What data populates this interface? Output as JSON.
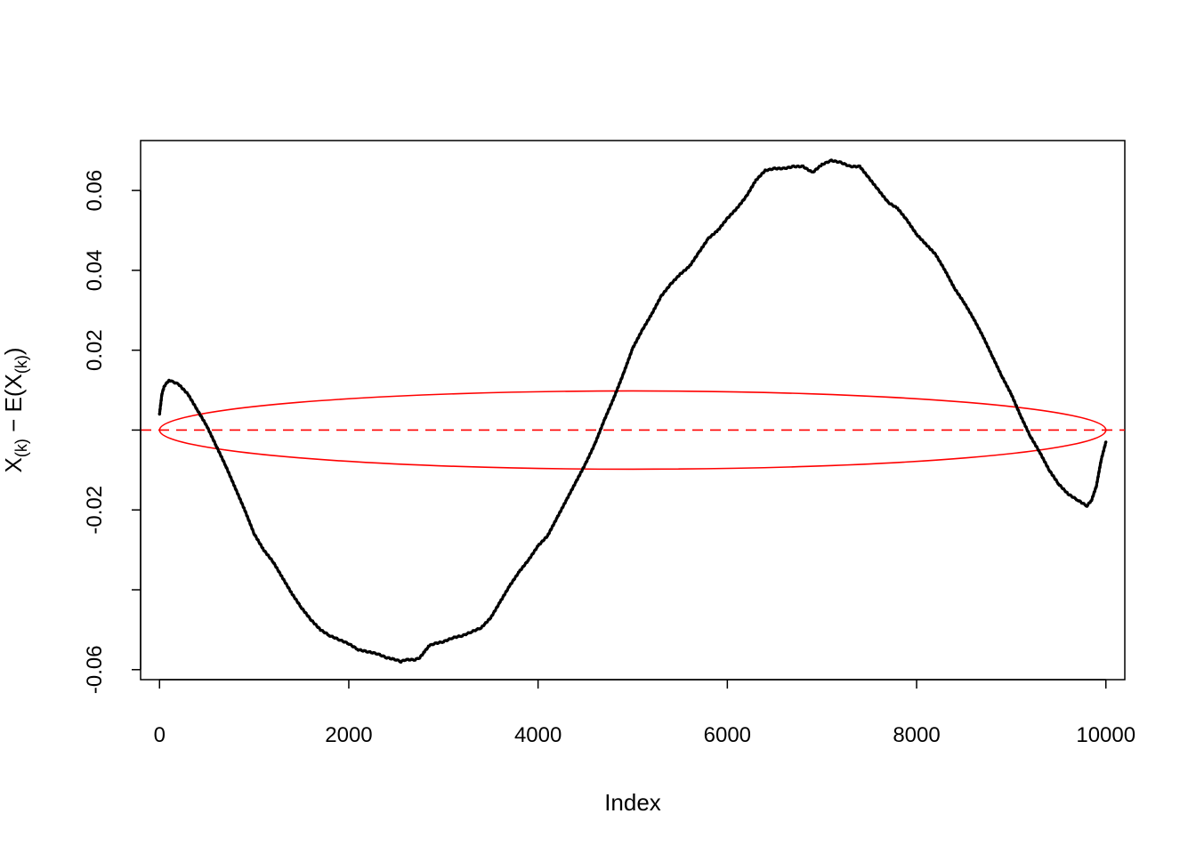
{
  "chart_data": {
    "type": "scatter",
    "title": "",
    "xlabel": "Index",
    "ylabel": {
      "x1": "X",
      "s1": "(k)",
      "m": " − E(X",
      "s2": "(k)",
      "e": ")"
    },
    "xlim": [
      -200,
      10200
    ],
    "ylim": [
      -0.0625,
      0.0725
    ],
    "xticks": [
      0,
      2000,
      4000,
      6000,
      8000,
      10000
    ],
    "xtick_labels": [
      "0",
      "2000",
      "4000",
      "6000",
      "8000",
      "10000"
    ],
    "yticks": [
      -0.06,
      -0.04,
      -0.02,
      0,
      0.02,
      0.04,
      0.06
    ],
    "ytick_labels": [
      "-0.06",
      "",
      "-0.02",
      "",
      "0.02",
      "0.04",
      "0.06"
    ],
    "grid": false,
    "series": [
      {
        "color": "#000000",
        "marker": "point",
        "x": [
          0,
          25,
          50,
          100,
          150,
          200,
          300,
          400,
          500,
          600,
          700,
          800,
          900,
          1000,
          1100,
          1200,
          1300,
          1400,
          1500,
          1600,
          1700,
          1800,
          1900,
          2000,
          2100,
          2200,
          2300,
          2400,
          2500,
          2550,
          2600,
          2700,
          2750,
          2800,
          2850,
          2900,
          3000,
          3100,
          3200,
          3300,
          3400,
          3500,
          3600,
          3700,
          3800,
          3900,
          4000,
          4100,
          4200,
          4300,
          4400,
          4500,
          4600,
          4700,
          4800,
          4900,
          5000,
          5100,
          5200,
          5300,
          5400,
          5500,
          5600,
          5700,
          5800,
          5900,
          6000,
          6100,
          6200,
          6300,
          6400,
          6500,
          6600,
          6700,
          6800,
          6900,
          7000,
          7100,
          7200,
          7300,
          7400,
          7500,
          7600,
          7700,
          7800,
          7900,
          8000,
          8100,
          8200,
          8300,
          8400,
          8500,
          8600,
          8700,
          8800,
          8900,
          9000,
          9100,
          9200,
          9300,
          9400,
          9500,
          9600,
          9700,
          9800,
          9850,
          9900,
          9950,
          10000
        ],
        "y": [
          0.004,
          0.009,
          0.011,
          0.0125,
          0.012,
          0.0115,
          0.009,
          0.005,
          0.001,
          -0.004,
          -0.009,
          -0.0145,
          -0.02,
          -0.026,
          -0.03,
          -0.033,
          -0.037,
          -0.041,
          -0.0445,
          -0.0475,
          -0.05,
          -0.0515,
          -0.0525,
          -0.0535,
          -0.055,
          -0.0555,
          -0.056,
          -0.057,
          -0.0575,
          -0.058,
          -0.0575,
          -0.0575,
          -0.057,
          -0.0555,
          -0.054,
          -0.0535,
          -0.053,
          -0.052,
          -0.0515,
          -0.0505,
          -0.0495,
          -0.047,
          -0.043,
          -0.039,
          -0.0355,
          -0.0325,
          -0.029,
          -0.0265,
          -0.022,
          -0.0175,
          -0.013,
          -0.0085,
          -0.0035,
          0.0025,
          0.008,
          0.014,
          0.0205,
          0.025,
          0.029,
          0.0335,
          0.0365,
          0.039,
          0.041,
          0.0445,
          0.048,
          0.05,
          0.053,
          0.0555,
          0.0585,
          0.0625,
          0.065,
          0.0655,
          0.0655,
          0.066,
          0.066,
          0.0645,
          0.0665,
          0.0675,
          0.067,
          0.066,
          0.066,
          0.063,
          0.06,
          0.057,
          0.0555,
          0.0525,
          0.049,
          0.0465,
          0.044,
          0.04,
          0.0355,
          0.032,
          0.028,
          0.0235,
          0.0185,
          0.0135,
          0.009,
          0.0035,
          -0.0015,
          -0.0055,
          -0.01,
          -0.0135,
          -0.016,
          -0.0175,
          -0.019,
          -0.0175,
          -0.014,
          -0.0075,
          -0.003
        ]
      }
    ],
    "reference_line": {
      "y": 0,
      "color": "#ff0000",
      "style": "dashed"
    },
    "ellipse": {
      "cx": 5000,
      "cy": 0,
      "rx": 5000,
      "ry": 0.0098,
      "color": "#ff0000"
    }
  }
}
